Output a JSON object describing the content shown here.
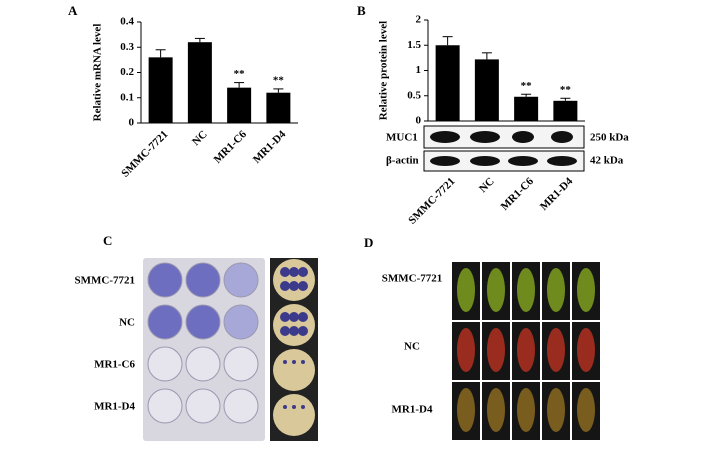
{
  "chart_data": [
    {
      "type": "bar",
      "panel_label": "A",
      "y_label": "Relative mRNA level",
      "categories": [
        "SMMC-7721",
        "NC",
        "MR1-C6",
        "MR1-D4"
      ],
      "values": [
        0.26,
        0.32,
        0.14,
        0.12
      ],
      "errors": [
        0.03,
        0.015,
        0.02,
        0.015
      ],
      "significance": [
        null,
        null,
        "**",
        "**"
      ],
      "color": "#000000",
      "ylim": [
        0,
        0.4
      ],
      "yticks": [
        0,
        0.1,
        0.2,
        0.3,
        0.4
      ]
    },
    {
      "type": "bar",
      "panel_label": "B",
      "y_label": "Relative protein  level",
      "categories": [
        "SMMC-7721",
        "NC",
        "MR1-C6",
        "MR1-D4"
      ],
      "values": [
        1.5,
        1.22,
        0.48,
        0.4
      ],
      "errors": [
        0.17,
        0.13,
        0.05,
        0.05
      ],
      "significance": [
        null,
        null,
        "**",
        "**"
      ],
      "color": "#000000",
      "ylim": [
        0,
        2
      ],
      "yticks": [
        0,
        0.5,
        1,
        1.5,
        2
      ]
    }
  ],
  "blot": {
    "bands": [
      "MUC1",
      "β-actin"
    ],
    "sizes": [
      "250 kDa",
      "42 kDa"
    ]
  },
  "panel_c": {
    "label": "C",
    "rows": [
      "SMMC-7721",
      "NC",
      "MR1-C6",
      "MR1-D4"
    ]
  },
  "panel_d": {
    "label": "D",
    "rows": [
      "SMMC-7721",
      "NC",
      "MR1-D4"
    ]
  }
}
